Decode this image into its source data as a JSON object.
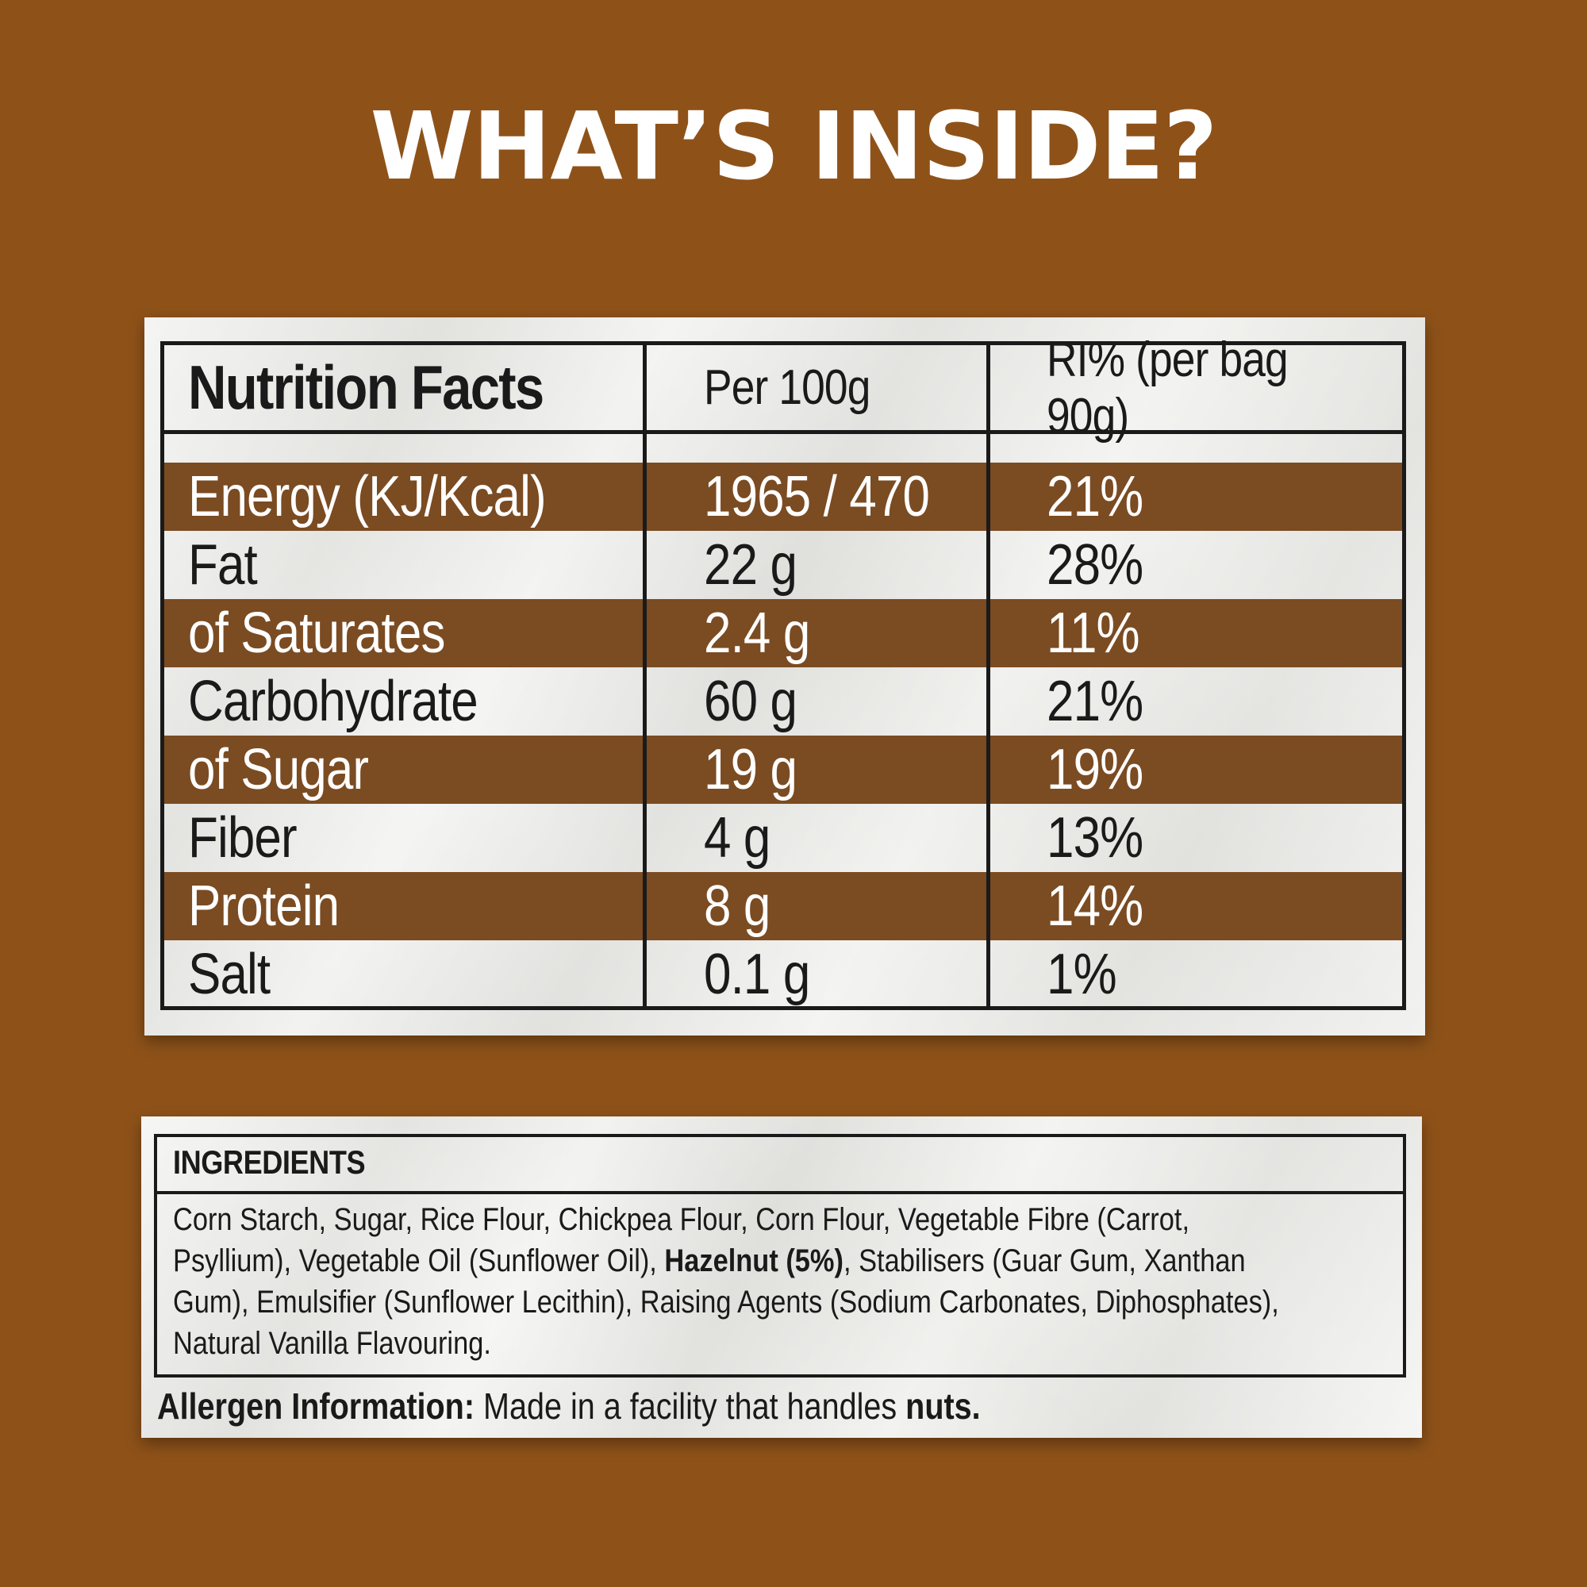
{
  "headline": "WHAT’S INSIDE?",
  "nutrition": {
    "title": "Nutrition Facts",
    "col_per100": "Per 100g",
    "col_ri": "RI% (per bag 90g)",
    "rows": [
      {
        "name": "Energy (KJ/Kcal)",
        "per100": "1965 / 470",
        "ri": "21%"
      },
      {
        "name": "Fat",
        "per100": "22 g",
        "ri": "28%"
      },
      {
        "name": "of Saturates",
        "per100": "2.4 g",
        "ri": "11%"
      },
      {
        "name": "Carbohydrate",
        "per100": "60 g",
        "ri": "21%"
      },
      {
        "name": "of Sugar",
        "per100": "19 g",
        "ri": "19%"
      },
      {
        "name": "Fiber",
        "per100": "4 g",
        "ri": "13%"
      },
      {
        "name": "Protein",
        "per100": "8 g",
        "ri": "14%"
      },
      {
        "name": "Salt",
        "per100": "0.1 g",
        "ri": "1%"
      }
    ]
  },
  "ingredients": {
    "title": "INGREDIENTS",
    "part1": "Corn Starch, Sugar, Rice Flour, Chickpea Flour, Corn Flour, Vegetable Fibre (Carrot, Psyllium), Vegetable Oil (Sunflower Oil), ",
    "bold": "Hazelnut (5%)",
    "part2": ", Stabilisers (Guar Gum, Xanthan Gum), Emulsifier (Sunflower Lecithin), Raising Agents (Sodium Carbonates, Diphosphates), Natural Vanilla Flavouring."
  },
  "allergen": {
    "label": "Allergen Information:",
    "text": " Made in a facility that handles ",
    "bold": "nuts."
  },
  "colors": {
    "background": "#8e5219",
    "row_band": "#7b4b22",
    "text_dark": "#1a1a1a",
    "headline": "#ffffff"
  }
}
